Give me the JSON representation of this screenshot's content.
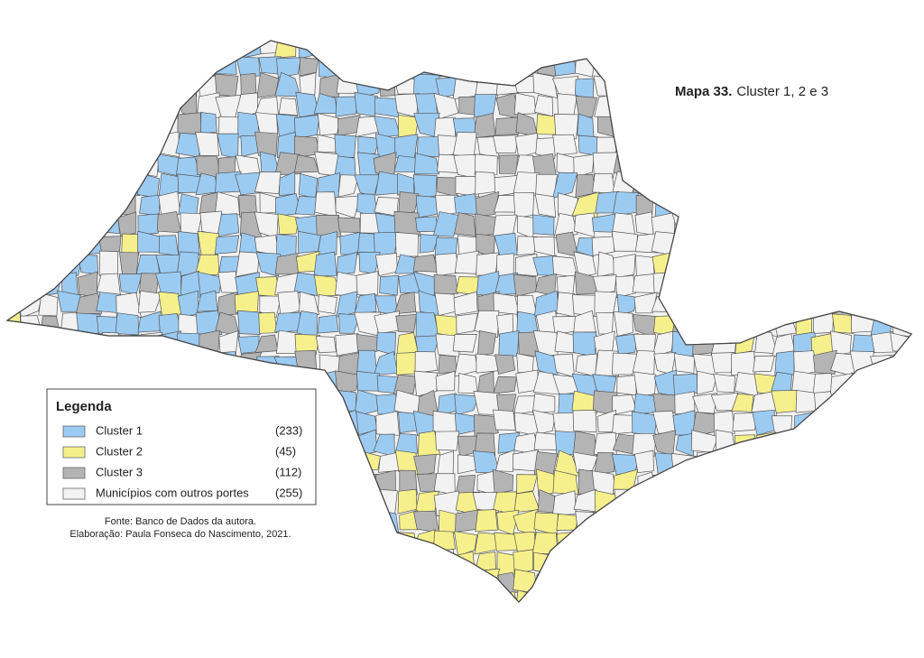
{
  "title": {
    "bold": "Mapa 33.",
    "rest": "Cluster 1, 2 e 3"
  },
  "legend": {
    "title": "Legenda",
    "items": [
      {
        "label": "Cluster 1",
        "count": "(233)",
        "color": "#9ccbf2"
      },
      {
        "label": "Cluster 2",
        "count": "(45)",
        "color": "#f6f08c"
      },
      {
        "label": "Cluster 3",
        "count": "(112)",
        "color": "#b4b4b4"
      },
      {
        "label": "Municípios com outros portes",
        "count": "(255)",
        "color": "#f2f2f2"
      }
    ]
  },
  "source": [
    "Fonte: Banco de Dados da autora.",
    "Elaboração: Paula Fonseca do Nascimento, 2021."
  ]
}
